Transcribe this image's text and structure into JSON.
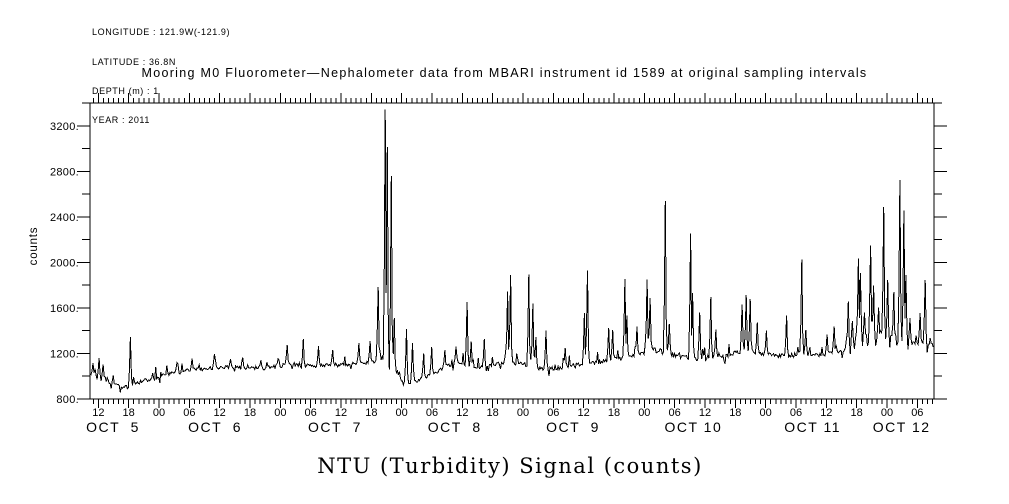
{
  "meta_block": {
    "lines": [
      "LONGITUDE : 121.9W(-121.9)",
      "LATITUDE : 36.8N",
      "DEPTH (m) : 1",
      "YEAR : 2011"
    ]
  },
  "title": "Mooring M0 Fluorometer—Nephalometer data from MBARI instrument id 1589 at original sampling intervals",
  "x_axis_label": "NTU (Turbidity) Signal (counts)",
  "chart_data": {
    "type": "line",
    "title": "Mooring M0 Fluorometer—Nephalometer data from MBARI instrument id 1589 at original sampling intervals",
    "xlabel": "NTU (Turbidity) Signal (counts)",
    "ylabel": "counts",
    "line_color": "#000000",
    "background": "#ffffff",
    "grid": false,
    "legend": false,
    "x_axis": {
      "start": "OCT 5 ~10:20 2011",
      "end": "OCT 12 ~09:20 2011",
      "hours_domain": [
        10.35,
        177.3
      ],
      "minor_tick_hours": 1,
      "major_tick_hours": 6,
      "first_label_hour": 12,
      "hour_tick_labels": [
        "12",
        "18",
        "00",
        "06",
        "12",
        "18",
        "00",
        "06",
        "12",
        "18",
        "00",
        "06",
        "12",
        "18",
        "00",
        "06",
        "12",
        "18",
        "00",
        "06",
        "12",
        "18",
        "00",
        "06",
        "12",
        "18",
        "00",
        "06"
      ],
      "day_labels": [
        {
          "label": "OCT  5",
          "t": 14.9
        },
        {
          "label": "OCT  6",
          "t": 35.1
        },
        {
          "label": "OCT  7",
          "t": 58.8
        },
        {
          "label": "OCT  8",
          "t": 82.5
        },
        {
          "label": "OCT  9",
          "t": 105.9
        },
        {
          "label": "OCT 10",
          "t": 129.7
        },
        {
          "label": "OCT 11",
          "t": 153.3
        },
        {
          "label": "OCT 12",
          "t": 170.9
        }
      ]
    },
    "y_axis": {
      "min": 800,
      "max": 3400,
      "minor_step": 200,
      "major_step": 400,
      "tick_values": [
        800,
        1200,
        1600,
        2000,
        2400,
        2800,
        3200
      ],
      "tick_labels": [
        "800.",
        "1200.",
        "1600.",
        "2000.",
        "2400.",
        "2800.",
        "3200."
      ]
    },
    "series": {
      "name": "NTU turbidity signal",
      "units": "counts",
      "sample_interval_hours": 0.2,
      "baseline_keyframes": [
        [
          10.35,
          1030
        ],
        [
          11.5,
          1000
        ],
        [
          13,
          975
        ],
        [
          15,
          935
        ],
        [
          16.5,
          905
        ],
        [
          18,
          902
        ],
        [
          19.5,
          945
        ],
        [
          21,
          958
        ],
        [
          23,
          978
        ],
        [
          26,
          1022
        ],
        [
          30,
          1052
        ],
        [
          34,
          1072
        ],
        [
          38,
          1082
        ],
        [
          42,
          1072
        ],
        [
          46,
          1080
        ],
        [
          48,
          1092
        ],
        [
          50,
          1115
        ],
        [
          52,
          1088
        ],
        [
          55,
          1092
        ],
        [
          58,
          1098
        ],
        [
          61,
          1102
        ],
        [
          63,
          1112
        ],
        [
          65,
          1118
        ],
        [
          67,
          1132
        ],
        [
          68.4,
          1160
        ],
        [
          69.4,
          1120
        ],
        [
          70.2,
          1062
        ],
        [
          71,
          1012
        ],
        [
          72,
          975
        ],
        [
          73.5,
          950
        ],
        [
          75,
          958
        ],
        [
          77,
          992
        ],
        [
          79,
          1042
        ],
        [
          81,
          1088
        ],
        [
          83,
          1112
        ],
        [
          85,
          1102
        ],
        [
          87,
          1072
        ],
        [
          89,
          1088
        ],
        [
          91,
          1112
        ],
        [
          93,
          1122
        ],
        [
          95,
          1112
        ],
        [
          97,
          1098
        ],
        [
          99,
          1078
        ],
        [
          101,
          1062
        ],
        [
          103,
          1072
        ],
        [
          105,
          1092
        ],
        [
          107,
          1106
        ],
        [
          109,
          1116
        ],
        [
          111,
          1126
        ],
        [
          113,
          1142
        ],
        [
          115,
          1156
        ],
        [
          117,
          1172
        ],
        [
          119,
          1192
        ],
        [
          120.5,
          1216
        ],
        [
          122,
          1232
        ],
        [
          123.5,
          1222
        ],
        [
          125,
          1202
        ],
        [
          127,
          1172
        ],
        [
          129,
          1162
        ],
        [
          131,
          1162
        ],
        [
          133,
          1162
        ],
        [
          135,
          1172
        ],
        [
          137,
          1192
        ],
        [
          139,
          1222
        ],
        [
          140.5,
          1236
        ],
        [
          142,
          1212
        ],
        [
          144,
          1192
        ],
        [
          146,
          1182
        ],
        [
          148,
          1178
        ],
        [
          150,
          1192
        ],
        [
          152,
          1202
        ],
        [
          154,
          1188
        ],
        [
          156,
          1192
        ],
        [
          158,
          1212
        ],
        [
          160,
          1242
        ],
        [
          161.5,
          1292
        ],
        [
          163,
          1332
        ],
        [
          165,
          1342
        ],
        [
          167,
          1332
        ],
        [
          169,
          1312
        ],
        [
          171,
          1302
        ],
        [
          173,
          1292
        ],
        [
          175,
          1282
        ],
        [
          177.3,
          1272
        ]
      ],
      "spikes": [
        [
          11.0,
          1115
        ],
        [
          12.2,
          1160
        ],
        [
          13.0,
          1105
        ],
        [
          18.3,
          1345
        ],
        [
          27.5,
          1120
        ],
        [
          30.6,
          1155
        ],
        [
          34.9,
          1195
        ],
        [
          38.2,
          1150
        ],
        [
          40.6,
          1165
        ],
        [
          44.1,
          1140
        ],
        [
          47.6,
          1155
        ],
        [
          49.4,
          1275
        ],
        [
          52.6,
          1325
        ],
        [
          55.6,
          1265
        ],
        [
          58.3,
          1230
        ],
        [
          63.6,
          1290
        ],
        [
          65.7,
          1310
        ],
        [
          67.4,
          1785
        ],
        [
          68.75,
          3345
        ],
        [
          69.15,
          3015
        ],
        [
          69.95,
          2760
        ],
        [
          70.45,
          1510
        ],
        [
          72.9,
          1415
        ],
        [
          74.1,
          1290
        ],
        [
          76.3,
          1200
        ],
        [
          77.9,
          1255
        ],
        [
          80.5,
          1230
        ],
        [
          82.8,
          1260
        ],
        [
          84.85,
          1650
        ],
        [
          85.8,
          1305
        ],
        [
          88.3,
          1325
        ],
        [
          92.95,
          1745
        ],
        [
          93.55,
          1890
        ],
        [
          97.15,
          1895
        ],
        [
          98.0,
          1640
        ],
        [
          98.6,
          1345
        ],
        [
          100.45,
          1400
        ],
        [
          104.4,
          1250
        ],
        [
          108.15,
          1555
        ],
        [
          108.75,
          1930
        ],
        [
          112.9,
          1425
        ],
        [
          113.7,
          1405
        ],
        [
          116.2,
          1855
        ],
        [
          116.6,
          1535
        ],
        [
          118.5,
          1435
        ],
        [
          120.45,
          1850
        ],
        [
          121.1,
          1685
        ],
        [
          124.15,
          2540
        ],
        [
          124.9,
          1460
        ],
        [
          129.2,
          2255
        ],
        [
          129.6,
          1730
        ],
        [
          131.0,
          1560
        ],
        [
          133.1,
          1695
        ],
        [
          134.2,
          1410
        ],
        [
          139.3,
          1630
        ],
        [
          140.2,
          1715
        ],
        [
          140.9,
          1680
        ],
        [
          142.4,
          1470
        ],
        [
          144.2,
          1400
        ],
        [
          148.2,
          1535
        ],
        [
          151.2,
          2025
        ],
        [
          151.9,
          1405
        ],
        [
          156.1,
          1365
        ],
        [
          157.6,
          1435
        ],
        [
          160.4,
          1655
        ],
        [
          161.2,
          1485
        ],
        [
          162.35,
          2035
        ],
        [
          162.75,
          1905
        ],
        [
          163.5,
          1560
        ],
        [
          164.65,
          2150
        ],
        [
          165.4,
          1795
        ],
        [
          166.3,
          1605
        ],
        [
          167.45,
          2485
        ],
        [
          168.2,
          1845
        ],
        [
          169.3,
          1740
        ],
        [
          170.5,
          2725
        ],
        [
          171.3,
          2455
        ],
        [
          171.75,
          1890
        ],
        [
          172.6,
          1510
        ],
        [
          174.5,
          1555
        ],
        [
          175.5,
          1845
        ]
      ],
      "noise": {
        "seed": 20111005,
        "default_amp": 17,
        "regions": [
          [
            10.35,
            13.5,
            26
          ],
          [
            68.3,
            71.2,
            55
          ],
          [
            96.5,
            99.5,
            25
          ],
          [
            119.8,
            126,
            32
          ],
          [
            128.6,
            134.5,
            28
          ],
          [
            138.6,
            142.5,
            30
          ],
          [
            149.5,
            152.5,
            24
          ],
          [
            159.8,
            172.5,
            72
          ]
        ],
        "upspike_prob": 0.08,
        "upspike_min": 25,
        "upspike_max": 95,
        "downspike_prob": 0.045,
        "downspike_min": 20,
        "downspike_max": 70,
        "clamp": [
          858,
          3390
        ]
      }
    }
  }
}
